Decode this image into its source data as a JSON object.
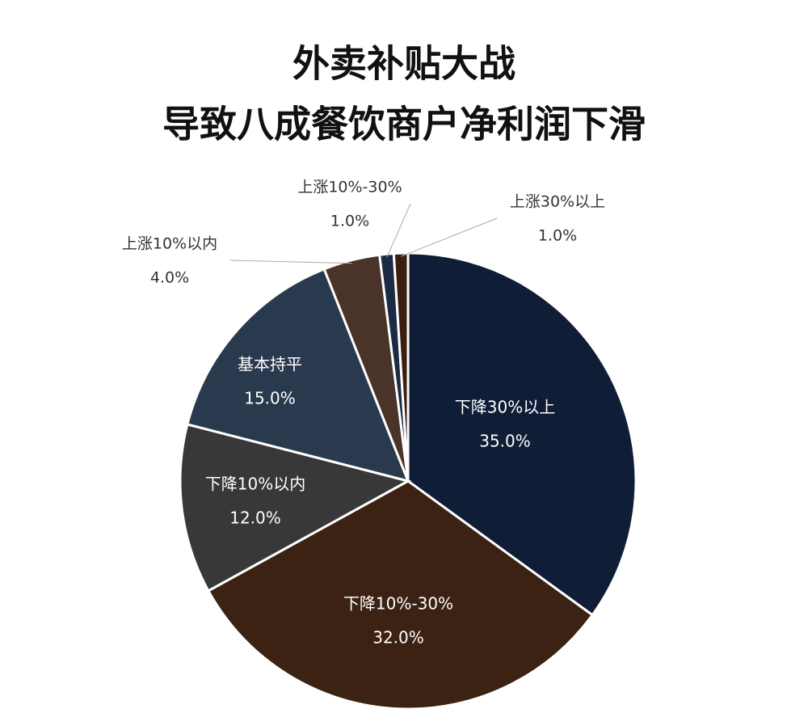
{
  "chart_data": {
    "type": "pie",
    "title": [
      "外卖补贴大战",
      "导致八成餐饮商户净利润下滑"
    ],
    "categories": [
      "下降30%以上",
      "下降10%-30%",
      "下降10%以内",
      "基本持平",
      "上涨10%以内",
      "上涨10%-30%",
      "上涨30%以上"
    ],
    "values": [
      35,
      32,
      12,
      15,
      4,
      1,
      1
    ],
    "value_labels": [
      "35.0%",
      "32.0%",
      "12.0%",
      "15.0%",
      "4.0%",
      "1.0%",
      "1.0%"
    ],
    "colors": [
      "#0f1e36",
      "#3b2213",
      "#383838",
      "#2a3a4e",
      "#4a3328",
      "#1c2a44",
      "#3a1e10"
    ]
  }
}
